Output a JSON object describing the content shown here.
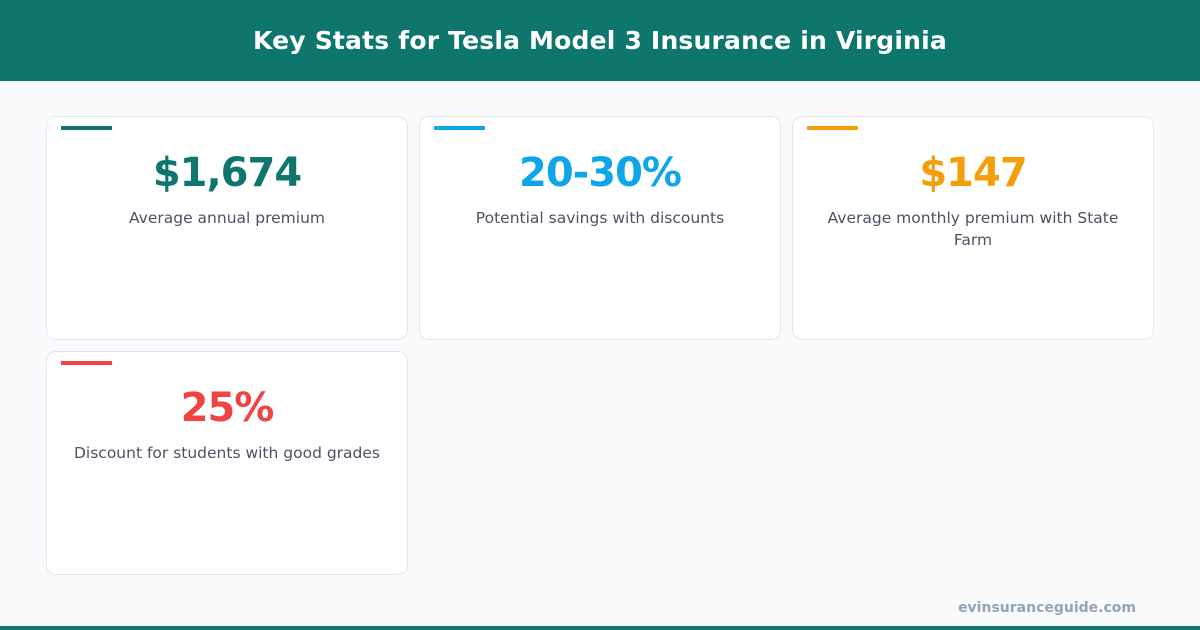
{
  "header": {
    "title": "Key Stats for Tesla Model 3 Insurance in Virginia"
  },
  "stats": [
    {
      "value": "$1,674",
      "label": "Average annual premium",
      "color": "#0f766e"
    },
    {
      "value": "20-30%",
      "label": "Potential savings with discounts",
      "color": "#0ea5e9"
    },
    {
      "value": "$147",
      "label": "Average monthly premium with State Farm",
      "color": "#f59e0b"
    },
    {
      "value": "25%",
      "label": "Discount for students with good grades",
      "color": "#ef4444"
    }
  ],
  "footer": {
    "site": "evinsuranceguide.com"
  }
}
